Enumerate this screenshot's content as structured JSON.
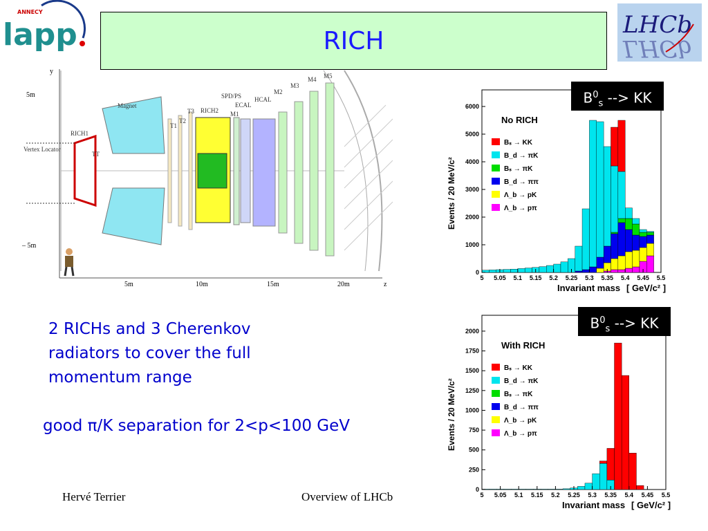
{
  "title": "RICH",
  "logos": {
    "lapp_text": "lapp",
    "lapp_annecy": "ANNECY",
    "lhcb_text": "LHCb"
  },
  "bullets": [
    "2 RICHs and 3 Cherenkov radiators to cover the full momentum range",
    "good π/K separation for 2<p<100 GeV"
  ],
  "footer": {
    "left": "Hervé Terrier",
    "right": "Overview of LHCb"
  },
  "detector": {
    "y_axis": "y",
    "z_axis": "z",
    "y_ticks": [
      "5m",
      "– 5m"
    ],
    "z_ticks": [
      "5m",
      "10m",
      "15m",
      "20m"
    ],
    "labels": [
      "Vertex Locator",
      "RICH1",
      "TT",
      "Magnet",
      "T1",
      "T2",
      "T3",
      "RICH2",
      "SPD/PS",
      "ECAL",
      "HCAL",
      "M1",
      "M2",
      "M3",
      "M4",
      "M5"
    ]
  },
  "chart_data": [
    {
      "type": "bar",
      "stacked": true,
      "panel_label": "No RICH",
      "tag": {
        "base": "B",
        "sup": "0",
        "sub": "s",
        "rest": " --> KK"
      },
      "xlabel": "Invariant mass",
      "xunit": "[ GeV/c² ]",
      "ylabel": "Events  /  20 MeV/c²",
      "xlim": [
        5.0,
        5.5
      ],
      "ylim": [
        0,
        6600
      ],
      "yticks": [
        0,
        1000,
        2000,
        3000,
        4000,
        5000,
        6000
      ],
      "xticks": [
        "5",
        "5.05",
        "5.1",
        "5.15",
        "5.2",
        "5.25",
        "5.3",
        "5.35",
        "5.4",
        "5.45",
        "5.5"
      ],
      "bin_edges": [
        5.0,
        5.02,
        5.04,
        5.06,
        5.08,
        5.1,
        5.12,
        5.14,
        5.16,
        5.18,
        5.2,
        5.22,
        5.24,
        5.26,
        5.28,
        5.3,
        5.32,
        5.34,
        5.36,
        5.38,
        5.4,
        5.42,
        5.44,
        5.46,
        5.48,
        5.5
      ],
      "series": [
        {
          "name": "Bₛ → KK",
          "color": "#ff0000",
          "values": [
            0,
            0,
            0,
            0,
            0,
            0,
            0,
            0,
            0,
            0,
            0,
            0,
            0,
            0,
            0,
            0,
            0,
            0,
            1400,
            1850,
            0,
            0,
            0,
            0,
            0
          ]
        },
        {
          "name": "B_d → πK",
          "color": "#00e5ee",
          "values": [
            80,
            90,
            100,
            110,
            120,
            140,
            160,
            180,
            210,
            250,
            300,
            380,
            500,
            900,
            2200,
            5300,
            4900,
            3600,
            2400,
            1700,
            380,
            200,
            100,
            30,
            0
          ]
        },
        {
          "name": "Bₛ → πK",
          "color": "#00dd00",
          "values": [
            0,
            0,
            0,
            0,
            0,
            0,
            0,
            0,
            0,
            0,
            0,
            0,
            0,
            0,
            0,
            0,
            0,
            0,
            50,
            150,
            400,
            400,
            150,
            100,
            0
          ]
        },
        {
          "name": "B_d → ππ",
          "color": "#0000ee",
          "values": [
            0,
            0,
            0,
            0,
            0,
            0,
            0,
            0,
            0,
            0,
            0,
            0,
            0,
            50,
            100,
            200,
            400,
            600,
            900,
            1200,
            800,
            550,
            400,
            300,
            0
          ]
        },
        {
          "name": "Λ_b → pK",
          "color": "#ffff00",
          "values": [
            0,
            0,
            0,
            0,
            0,
            0,
            0,
            0,
            0,
            0,
            0,
            0,
            0,
            0,
            0,
            0,
            150,
            300,
            400,
            500,
            600,
            600,
            500,
            450,
            0
          ]
        },
        {
          "name": "Λ_b → pπ",
          "color": "#ff00ff",
          "values": [
            0,
            0,
            0,
            0,
            0,
            0,
            0,
            0,
            0,
            0,
            0,
            0,
            0,
            0,
            0,
            0,
            0,
            50,
            100,
            100,
            150,
            200,
            400,
            600,
            0
          ]
        }
      ]
    },
    {
      "type": "bar",
      "stacked": true,
      "panel_label": "With RICH",
      "tag": {
        "base": "B",
        "sup": "0",
        "sub": "s",
        "rest": " --> KK"
      },
      "xlabel": "Invariant mass",
      "xunit": "[ GeV/c² ]",
      "ylabel": "Events  /  20 MeV/c²",
      "xlim": [
        5.0,
        5.5
      ],
      "ylim": [
        0,
        2200
      ],
      "yticks": [
        0,
        250,
        500,
        750,
        1000,
        1250,
        1500,
        1750,
        2000
      ],
      "xticks": [
        "5",
        "5.05",
        "5.1",
        "5.15",
        "5.2",
        "5.25",
        "5.3",
        "5.35",
        "5.4",
        "5.45",
        "5.5"
      ],
      "bin_edges": [
        5.0,
        5.02,
        5.04,
        5.06,
        5.08,
        5.1,
        5.12,
        5.14,
        5.16,
        5.18,
        5.2,
        5.22,
        5.24,
        5.26,
        5.28,
        5.3,
        5.32,
        5.34,
        5.36,
        5.38,
        5.4,
        5.42,
        5.44,
        5.46,
        5.48,
        5.5
      ],
      "series": [
        {
          "name": "Bₛ → KK",
          "color": "#ff0000",
          "values": [
            0,
            0,
            0,
            0,
            0,
            0,
            0,
            0,
            0,
            0,
            0,
            0,
            0,
            0,
            0,
            0,
            30,
            400,
            1850,
            1440,
            460,
            50,
            0,
            0,
            0
          ]
        },
        {
          "name": "B_d → πK",
          "color": "#00e5ee",
          "values": [
            5,
            5,
            5,
            5,
            5,
            5,
            5,
            5,
            5,
            5,
            5,
            10,
            20,
            40,
            80,
            200,
            330,
            120,
            0,
            0,
            0,
            0,
            0,
            0,
            0
          ]
        },
        {
          "name": "Bₛ → πK",
          "color": "#00dd00",
          "values": [
            0,
            0,
            0,
            0,
            0,
            0,
            0,
            0,
            0,
            0,
            0,
            0,
            0,
            0,
            0,
            0,
            0,
            0,
            0,
            0,
            0,
            0,
            0,
            0,
            0
          ]
        },
        {
          "name": "B_d → ππ",
          "color": "#0000ee",
          "values": [
            0,
            0,
            0,
            0,
            0,
            0,
            0,
            0,
            0,
            0,
            0,
            0,
            0,
            0,
            0,
            0,
            0,
            0,
            0,
            0,
            0,
            0,
            0,
            0,
            0
          ]
        },
        {
          "name": "Λ_b → pK",
          "color": "#ffff00",
          "values": [
            0,
            0,
            0,
            0,
            0,
            0,
            0,
            0,
            0,
            0,
            0,
            0,
            0,
            0,
            0,
            0,
            0,
            0,
            0,
            0,
            0,
            0,
            0,
            0,
            0
          ]
        },
        {
          "name": "Λ_b → pπ",
          "color": "#ff00ff",
          "values": [
            0,
            0,
            0,
            0,
            0,
            0,
            0,
            0,
            0,
            0,
            0,
            0,
            0,
            0,
            0,
            0,
            0,
            0,
            0,
            0,
            0,
            0,
            0,
            0,
            0
          ]
        }
      ]
    }
  ]
}
